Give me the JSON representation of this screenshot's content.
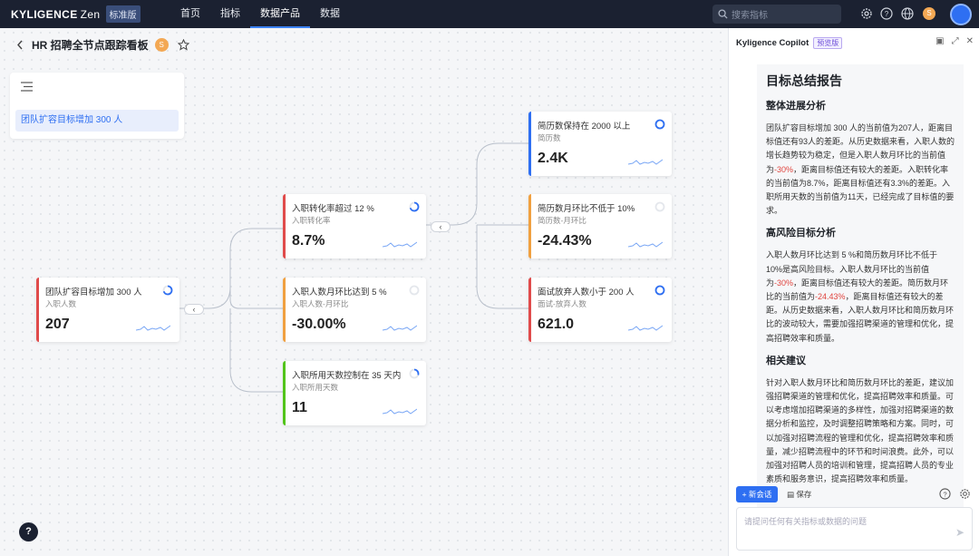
{
  "brand": {
    "name": "KYLIGENCE",
    "product": "Zen",
    "edition": "标准版"
  },
  "nav": [
    "首页",
    "指标",
    "数据产品",
    "数据"
  ],
  "nav_active": 2,
  "search": {
    "placeholder": "搜索指标"
  },
  "user_initial": "S",
  "page": {
    "title": "HR 招聘全节点跟踪看板",
    "owner_initial": "S"
  },
  "outline": {
    "item": "团队扩容目标增加 300 人"
  },
  "nodes": {
    "root": {
      "title": "团队扩容目标增加 300 人",
      "sub": "入职人数",
      "value": "207",
      "color": "#e04b4b",
      "progress": 0.7
    },
    "conv": {
      "title": "入职转化率超过 12 %",
      "sub": "入职转化率",
      "value": "8.7%",
      "color": "#e04b4b",
      "progress": 0.7
    },
    "mom": {
      "title": "入职人数月环比达到 5 %",
      "sub": "入职人数-月环比",
      "value": "-30.00%",
      "color": "#f0a040",
      "progress": 0
    },
    "days": {
      "title": "入职所用天数控制在 35 天内",
      "sub": "入职所用天数",
      "value": "11",
      "color": "#52c41a",
      "progress": 0.3
    },
    "resume": {
      "title": "简历数保持在 2000 以上",
      "sub": "简历数",
      "value": "2.4K",
      "color": "#2e6ff2",
      "progress": 1
    },
    "resmom": {
      "title": "简历数月环比不低于 10%",
      "sub": "简历数-月环比",
      "value": "-24.43%",
      "color": "#f0a040",
      "progress": 0
    },
    "giveup": {
      "title": "面试放弃人数小于 200 人",
      "sub": "面试-放弃人数",
      "value": "621.0",
      "color": "#e04b4b",
      "progress": 1
    }
  },
  "panel": {
    "title": "Kyligence Copilot",
    "badge": "预览版",
    "report_title": "目标总结报告",
    "s1": "整体进展分析",
    "p1a": "团队扩容目标增加 300 人的当前值为207人，距离目标值还有93人的差距。从历史数据来看，入职人数的增长趋势较为稳定，但是入职人数月环比的当前值为",
    "p1red": "-30%",
    "p1b": "，距离目标值还有较大的差距。入职转化率的当前值为8.7%，距离目标值还有3.3%的差距。入职所用天数的当前值为11天，已经完成了目标值的要求。",
    "s2": "高风险目标分析",
    "p2a": "入职人数月环比达到 5 %和简历数月环比不低于 10%是高风险目标。入职人数月环比的当前值为",
    "p2red": "-30%",
    "p2b": "，距离目标值还有较大的差距。简历数月环比的当前值为",
    "p2red2": "-24.43%",
    "p2c": "，距离目标值还有较大的差距。从历史数据来看，入职人数月环比和简历数月环比的波动较大，需要加强招聘渠道的管理和优化，提高招聘效率和质量。",
    "s3": "相关建议",
    "p3": "针对入职人数月环比和简历数月环比的差距，建议加强招聘渠道的管理和优化，提高招聘效率和质量。可以考虑增加招聘渠道的多样性，加强对招聘渠道的数据分析和监控，及时调整招聘策略和方案。同时，可以加强对招聘流程的管理和优化，提高招聘效率和质量，减少招聘流程中的环节和时间浪费。此外，可以加强对招聘人员的培训和管理，提高招聘人员的专业素质和服务意识，提高招聘效率和质量。",
    "new_chat": "+ 新会话",
    "save": "保存",
    "input_placeholder": "请提问任何有关指标或数据的问题"
  }
}
